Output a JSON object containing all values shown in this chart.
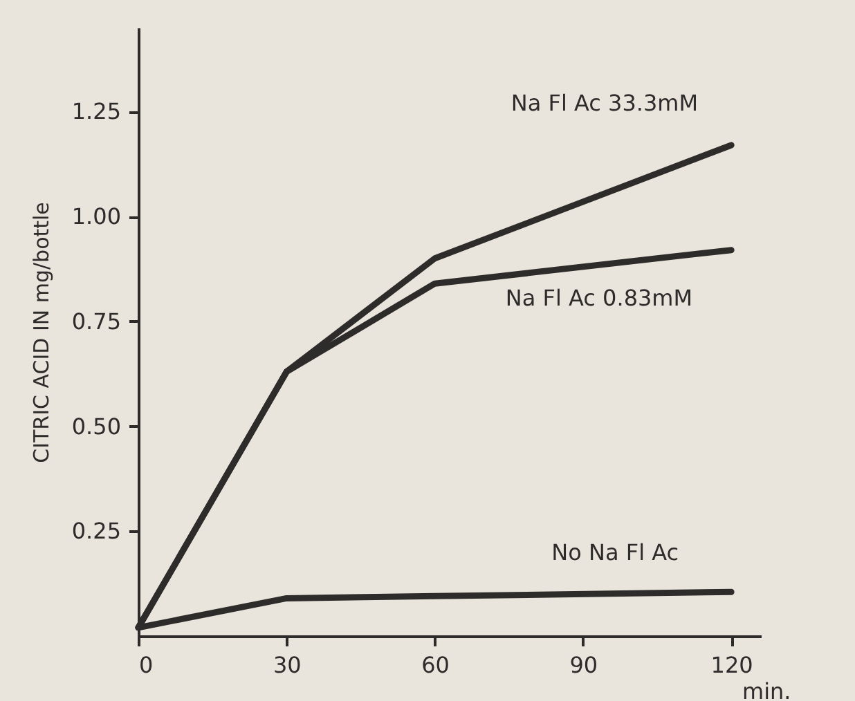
{
  "chart_data": {
    "type": "line",
    "xlabel": "min.",
    "ylabel": "CITRIC ACID IN mg/bottle",
    "x": [
      0,
      30,
      60,
      120
    ],
    "series": [
      {
        "name": "Na Fl Ac 33.3mM",
        "color": "#2e2b2b",
        "values": [
          0.02,
          0.63,
          0.9,
          1.17
        ]
      },
      {
        "name": "Na Fl Ac 0.83mM",
        "color": "#2e2b2b",
        "values": [
          0.02,
          0.63,
          0.84,
          0.92
        ]
      },
      {
        "name": "No Na Fl Ac",
        "color": "#2e2b2b",
        "values": [
          0.02,
          0.09,
          0.095,
          0.105
        ]
      }
    ],
    "xlim": [
      0,
      126
    ],
    "xticks": [
      0,
      30,
      60,
      90,
      120
    ],
    "ylim": [
      0,
      1.45
    ],
    "yticks": [
      {
        "value": 0.25,
        "label": "0.25"
      },
      {
        "value": 0.5,
        "label": "0.50"
      },
      {
        "value": 0.75,
        "label": "0.75"
      },
      {
        "value": 1,
        "label": "1.00"
      },
      {
        "value": 1.25,
        "label": "1.25"
      }
    ],
    "grid": false,
    "legend": false,
    "marker": "none",
    "line_style": "solid"
  }
}
